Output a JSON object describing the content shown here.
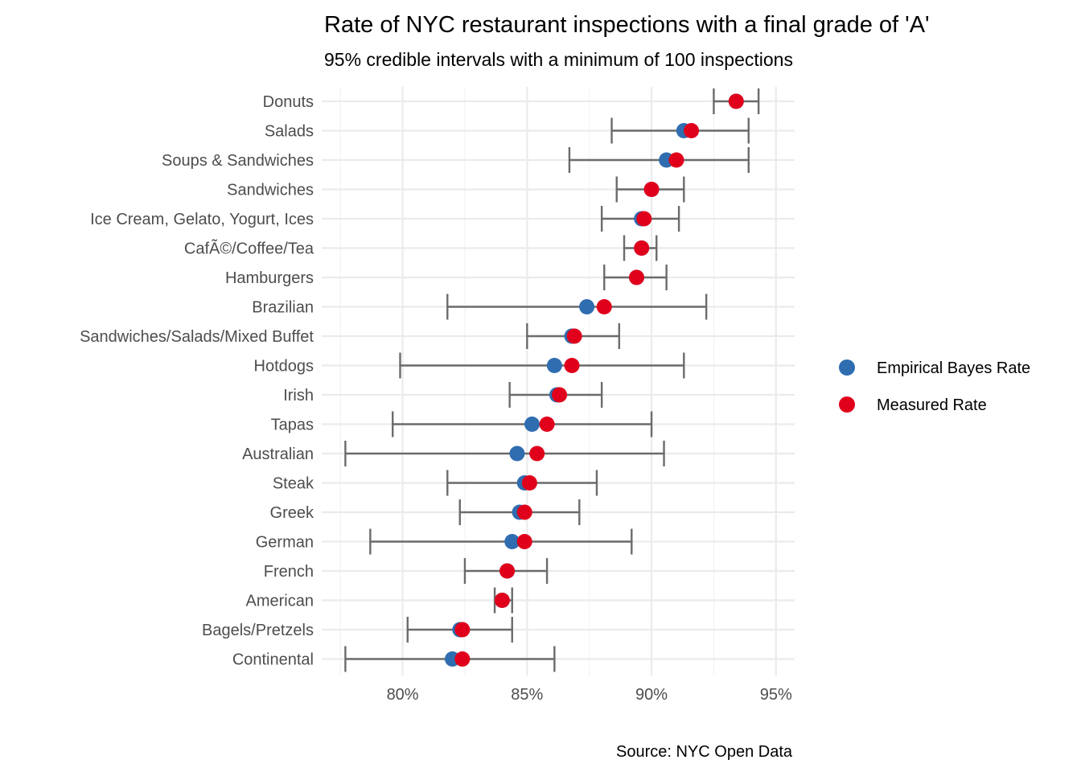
{
  "chart_data": {
    "type": "scatter",
    "title": "Rate of NYC restaurant inspections with a final grade of 'A'",
    "subtitle": "95% credible intervals with a minimum of 100 inspections",
    "caption": "Source: NYC Open Data",
    "xlabel": "",
    "ylabel": "",
    "xlim": [
      0.7675,
      0.9575
    ],
    "x_ticks": [
      0.8,
      0.85,
      0.9,
      0.95
    ],
    "x_tick_labels": [
      "80%",
      "85%",
      "90%",
      "95%"
    ],
    "grid": true,
    "legend_position": "right",
    "legend": [
      {
        "name": "Empirical Bayes Rate",
        "color": "#2f6db0"
      },
      {
        "name": "Measured Rate",
        "color": "#e0001b"
      }
    ],
    "categories": [
      "Donuts",
      "Salads",
      "Soups & Sandwiches",
      "Sandwiches",
      "Ice Cream, Gelato, Yogurt, Ices",
      "CafÃ©/Coffee/Tea",
      "Hamburgers",
      "Brazilian",
      "Sandwiches/Salads/Mixed Buffet",
      "Hotdogs",
      "Irish",
      "Tapas",
      "Australian",
      "Steak",
      "Greek",
      "German",
      "French",
      "American",
      "Bagels/Pretzels",
      "Continental"
    ],
    "series": [
      {
        "name": "Empirical Bayes Rate",
        "values": [
          0.934,
          0.913,
          0.906,
          0.9,
          0.896,
          0.896,
          0.894,
          0.874,
          0.868,
          0.861,
          0.862,
          0.852,
          0.846,
          0.849,
          0.847,
          0.844,
          0.842,
          0.84,
          0.823,
          0.82
        ]
      },
      {
        "name": "Measured Rate",
        "values": [
          0.934,
          0.916,
          0.91,
          0.9,
          0.897,
          0.896,
          0.894,
          0.881,
          0.869,
          0.868,
          0.863,
          0.858,
          0.854,
          0.851,
          0.849,
          0.849,
          0.842,
          0.84,
          0.824,
          0.824
        ]
      }
    ],
    "intervals": [
      {
        "low": 0.925,
        "high": 0.943
      },
      {
        "low": 0.884,
        "high": 0.939
      },
      {
        "low": 0.867,
        "high": 0.939
      },
      {
        "low": 0.886,
        "high": 0.913
      },
      {
        "low": 0.88,
        "high": 0.911
      },
      {
        "low": 0.889,
        "high": 0.902
      },
      {
        "low": 0.881,
        "high": 0.906
      },
      {
        "low": 0.818,
        "high": 0.922
      },
      {
        "low": 0.85,
        "high": 0.887
      },
      {
        "low": 0.799,
        "high": 0.913
      },
      {
        "low": 0.843,
        "high": 0.88
      },
      {
        "low": 0.796,
        "high": 0.9
      },
      {
        "low": 0.777,
        "high": 0.905
      },
      {
        "low": 0.818,
        "high": 0.878
      },
      {
        "low": 0.823,
        "high": 0.871
      },
      {
        "low": 0.787,
        "high": 0.892
      },
      {
        "low": 0.825,
        "high": 0.858
      },
      {
        "low": 0.837,
        "high": 0.844
      },
      {
        "low": 0.802,
        "high": 0.844
      },
      {
        "low": 0.777,
        "high": 0.861
      }
    ]
  }
}
